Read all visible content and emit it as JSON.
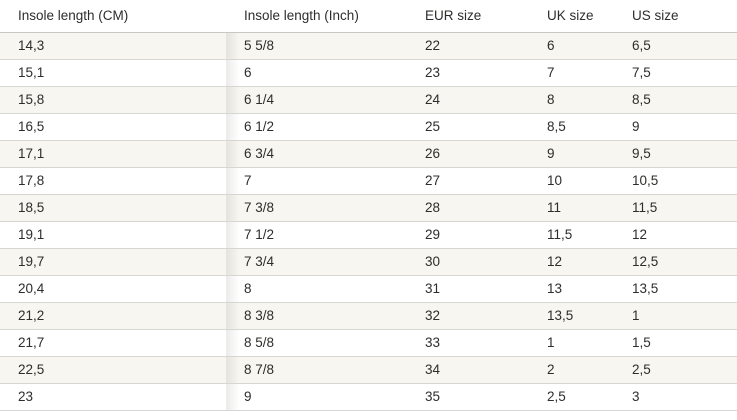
{
  "colors": {
    "stripe": "#f7f6f1",
    "row_border": "#d8d6d2",
    "header_border": "#c9c7c3",
    "text": "#2e2d2b"
  },
  "table": {
    "columns": [
      "Insole length (CM)",
      "Insole length (Inch)",
      "EUR size",
      "UK size",
      "US size"
    ],
    "rows": [
      [
        "14,3",
        "5 5/8",
        "22",
        "6",
        "6,5"
      ],
      [
        "15,1",
        "6",
        "23",
        "7",
        "7,5"
      ],
      [
        "15,8",
        "6 1/4",
        "24",
        "8",
        "8,5"
      ],
      [
        "16,5",
        "6 1/2",
        "25",
        "8,5",
        "9"
      ],
      [
        "17,1",
        "6 3/4",
        "26",
        "9",
        "9,5"
      ],
      [
        "17,8",
        "7",
        "27",
        "10",
        "10,5"
      ],
      [
        "18,5",
        "7 3/8",
        "28",
        "11",
        "11,5"
      ],
      [
        "19,1",
        "7 1/2",
        "29",
        "11,5",
        "12"
      ],
      [
        "19,7",
        "7 3/4",
        "30",
        "12",
        "12,5"
      ],
      [
        "20,4",
        "8",
        "31",
        "13",
        "13,5"
      ],
      [
        "21,2",
        "8 3/8",
        "32",
        "13,5",
        "1"
      ],
      [
        "21,7",
        "8 5/8",
        "33",
        "1",
        "1,5"
      ],
      [
        "22,5",
        "8 7/8",
        "34",
        "2",
        "2,5"
      ],
      [
        "23",
        "9",
        "35",
        "2,5",
        "3"
      ]
    ]
  }
}
